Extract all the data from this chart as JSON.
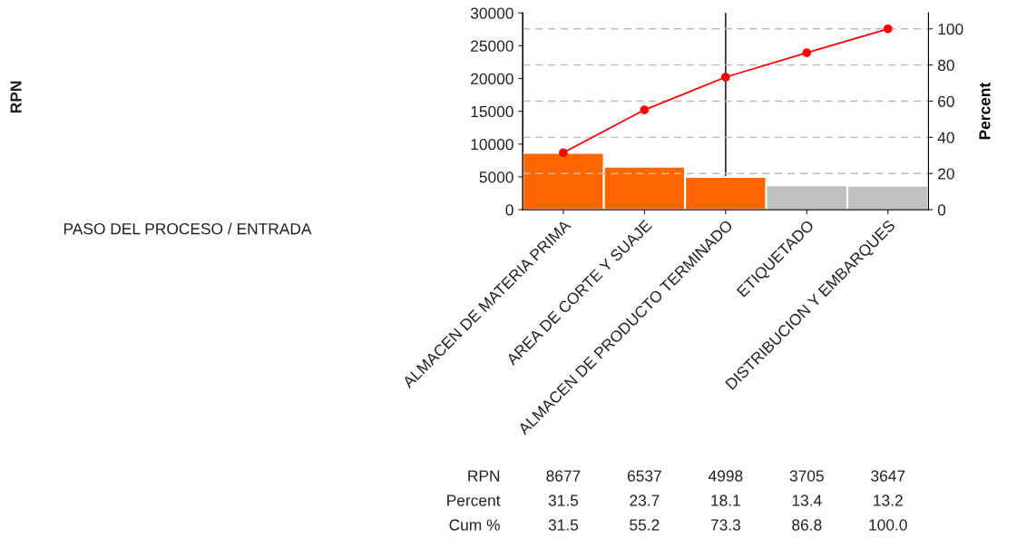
{
  "chart_data": {
    "type": "bar",
    "y2label": "Percent",
    "annotations": [
      "PASO DEL PROCESO / ENTRADA",
      "RPN",
      "RPN",
      "Percent",
      "Cum %",
      "31.5",
      "23.7",
      "18.1",
      "13.4",
      "13.2"
    ],
    "categories": [
      "ALMACEN DE MATERIA PRIMA",
      "AREA DE CORTE Y SUAJE",
      "ALMACEN DE PRODUCTO TERMINADO",
      "ETIQUETADO",
      "DISTRIBUCION Y EMBARQUES"
    ],
    "series": [
      {
        "colors": [
          "#ff6600",
          "#ff6600",
          "#ff6600",
          "#c0c0c0",
          "#c0c0c0"
        ],
        "values": [
          8677,
          6537,
          4998,
          3705,
          3647
        ],
        "value_labels": [
          "8677",
          "6537",
          "4998",
          "3705",
          "3647"
        ]
      },
      {
        "type": "line",
        "axis": "y2",
        "color": "#ff0000",
        "marker": "circle",
        "values": [
          31.5,
          55.2,
          73.3,
          86.8,
          100.0
        ],
        "value_labels": [
          "31.5",
          "55.2",
          "73.3",
          "86.8",
          "100.0"
        ]
      }
    ],
    "ylim": [
      0,
      30000
    ],
    "yticks": [
      0,
      5000,
      10000,
      15000,
      20000,
      25000,
      30000
    ],
    "y2lim": [
      0,
      108.8
    ],
    "y2ticks": [
      0,
      20,
      40,
      60,
      80,
      100
    ],
    "grid": "y2",
    "legend": false,
    "ref_lines": [
      {
        "axis": "x",
        "value": "ALMACEN DE PRODUCTO TERMINADO",
        "color": "#333333",
        "line_style": "solid"
      }
    ]
  }
}
